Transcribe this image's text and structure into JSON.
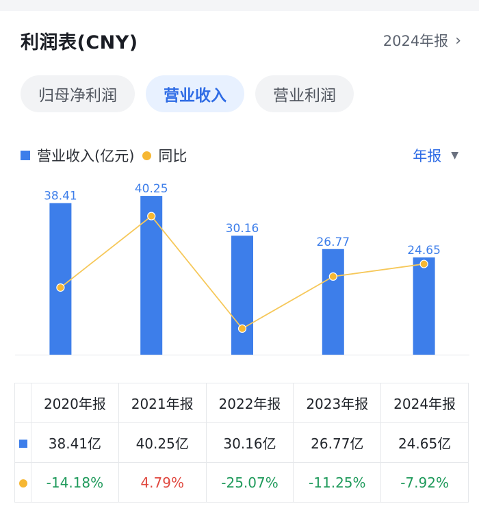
{
  "header": {
    "title": "利润表(CNY)",
    "period_link": "2024年报"
  },
  "tabs": [
    {
      "label": "归母净利润",
      "active": false
    },
    {
      "label": "营业收入",
      "active": true
    },
    {
      "label": "营业利润",
      "active": false
    }
  ],
  "legend": {
    "bar_label": "营业收入(亿元)",
    "line_label": "同比"
  },
  "period_select": {
    "label": "年报"
  },
  "colors": {
    "bar": "#3d7eea",
    "line": "#f6c85a",
    "point": "#f6b733",
    "bar_label": "#3d7eea",
    "positive": "#e0483f",
    "negative": "#1f9a5b",
    "accent": "#2f6ce5"
  },
  "chart_data": {
    "type": "bar",
    "categories": [
      "2020年报",
      "2021年报",
      "2022年报",
      "2023年报",
      "2024年报"
    ],
    "series": [
      {
        "name": "营业收入(亿元)",
        "type": "bar",
        "values": [
          38.41,
          40.25,
          30.16,
          26.77,
          24.65
        ]
      },
      {
        "name": "同比",
        "type": "line",
        "values": [
          -14.18,
          4.79,
          -25.07,
          -11.25,
          -7.92
        ]
      }
    ],
    "ylim": [
      0,
      42
    ],
    "y2lim": [
      -32,
      12
    ],
    "grid": false,
    "legend": "top-left"
  },
  "table": {
    "headers": [
      "2020年报",
      "2021年报",
      "2022年报",
      "2023年报",
      "2024年报"
    ],
    "revenue_row": [
      "38.41亿",
      "40.25亿",
      "30.16亿",
      "26.77亿",
      "24.65亿"
    ],
    "yoy_row": [
      "-14.18%",
      "4.79%",
      "-25.07%",
      "-11.25%",
      "-7.92%"
    ],
    "row_icons": [
      "bar-legend-icon",
      "line-legend-icon"
    ]
  }
}
